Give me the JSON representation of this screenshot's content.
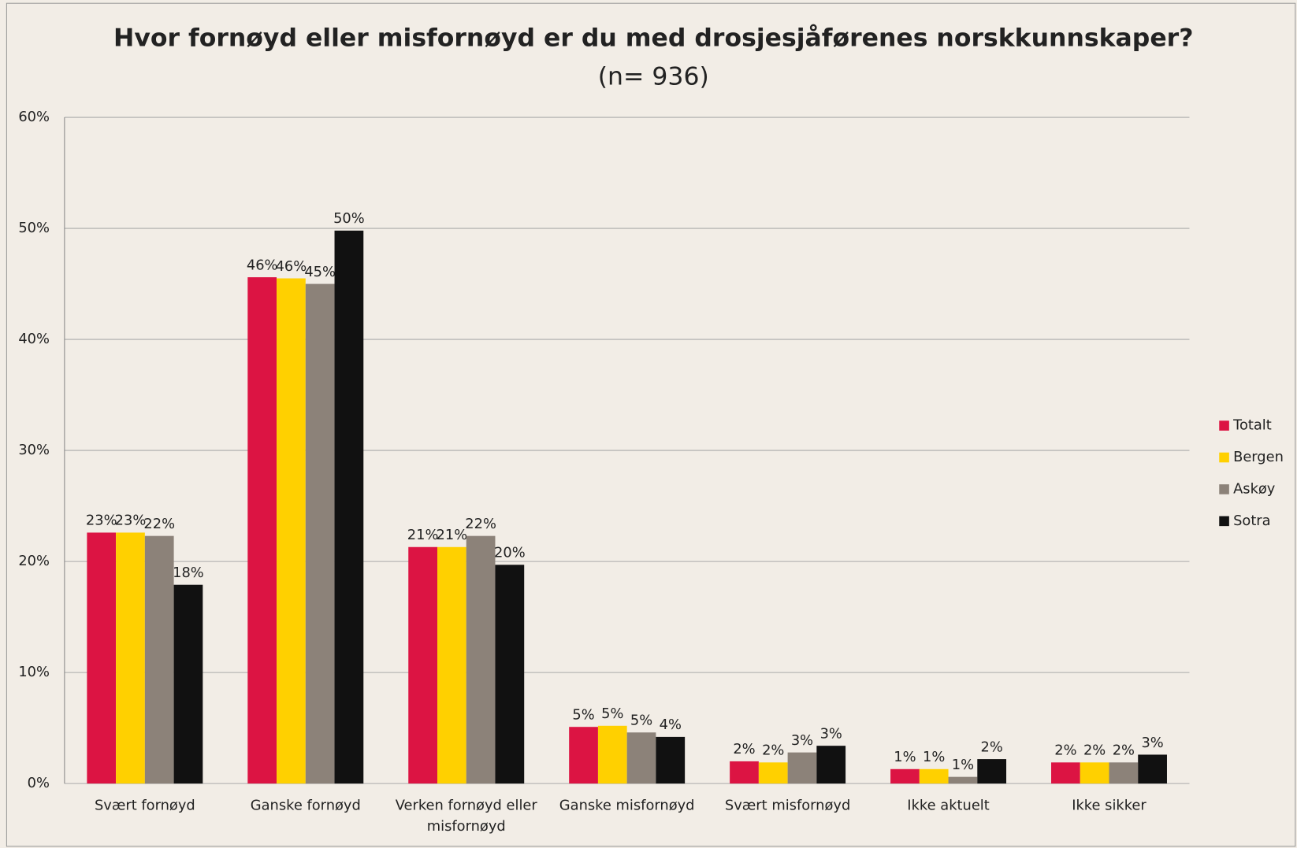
{
  "chart_data": {
    "type": "bar",
    "title": "Hvor fornøyd eller misfornøyd er du med drosjesjåførenes norskkunnskaper?",
    "subtitle": "(n= 936)",
    "categories": [
      "Svært fornøyd",
      "Ganske fornøyd",
      "Verken fornøyd eller misfornøyd",
      "Ganske misfornøyd",
      "Svært misfornøyd",
      "Ikke aktuelt",
      "Ikke sikker"
    ],
    "series": [
      {
        "name": "Totalt",
        "color": "#dc1443",
        "values": [
          22.6,
          45.6,
          21.3,
          5.1,
          2.0,
          1.3,
          1.9
        ],
        "value_labels": [
          "23%",
          "46%",
          "21%",
          "5%",
          "2%",
          "1%",
          "2%"
        ]
      },
      {
        "name": "Bergen",
        "color": "#ffd000",
        "values": [
          22.6,
          45.5,
          21.3,
          5.2,
          1.9,
          1.3,
          1.9
        ],
        "value_labels": [
          "23%",
          "46%",
          "21%",
          "5%",
          "2%",
          "1%",
          "2%"
        ]
      },
      {
        "name": "Askøy",
        "color": "#8c8279",
        "values": [
          22.3,
          45.0,
          22.3,
          4.6,
          2.8,
          0.6,
          1.9
        ],
        "value_labels": [
          "22%",
          "45%",
          "22%",
          "5%",
          "3%",
          "1%",
          "2%"
        ]
      },
      {
        "name": "Sotra",
        "color": "#111111",
        "values": [
          17.9,
          49.8,
          19.7,
          4.2,
          3.4,
          2.2,
          2.6
        ],
        "value_labels": [
          "18%",
          "50%",
          "20%",
          "4%",
          "3%",
          "2%",
          "3%"
        ]
      }
    ],
    "ylim": [
      0,
      60
    ],
    "yticks": [
      {
        "value": 0,
        "label": "0%"
      },
      {
        "value": 10,
        "label": "10%"
      },
      {
        "value": 20,
        "label": "20%"
      },
      {
        "value": 30,
        "label": "30%"
      },
      {
        "value": 40,
        "label": "40%"
      },
      {
        "value": 50,
        "label": "50%"
      },
      {
        "value": 60,
        "label": "60%"
      }
    ],
    "grid": true,
    "legend": "right"
  }
}
